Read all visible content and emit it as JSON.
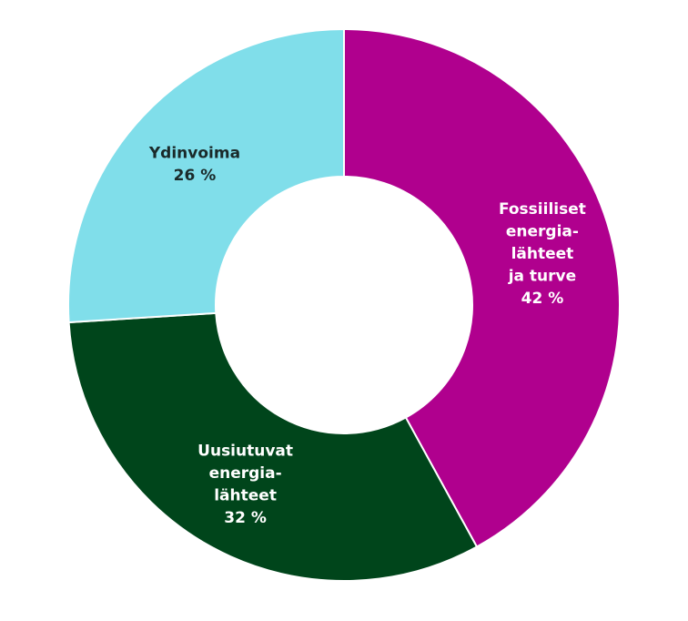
{
  "chart_data": {
    "type": "donut",
    "categories": [
      "Fossiiliset\nenergia-\nlähteet\nja turve",
      "Uusiutuvat\nenergia-\nlähteet",
      "Ydinvoima"
    ],
    "values": [
      42,
      32,
      26
    ],
    "value_labels": [
      "42 %",
      "32 %",
      "26 %"
    ],
    "colors": [
      "#b0008e",
      "#00451b",
      "#80deea"
    ]
  }
}
